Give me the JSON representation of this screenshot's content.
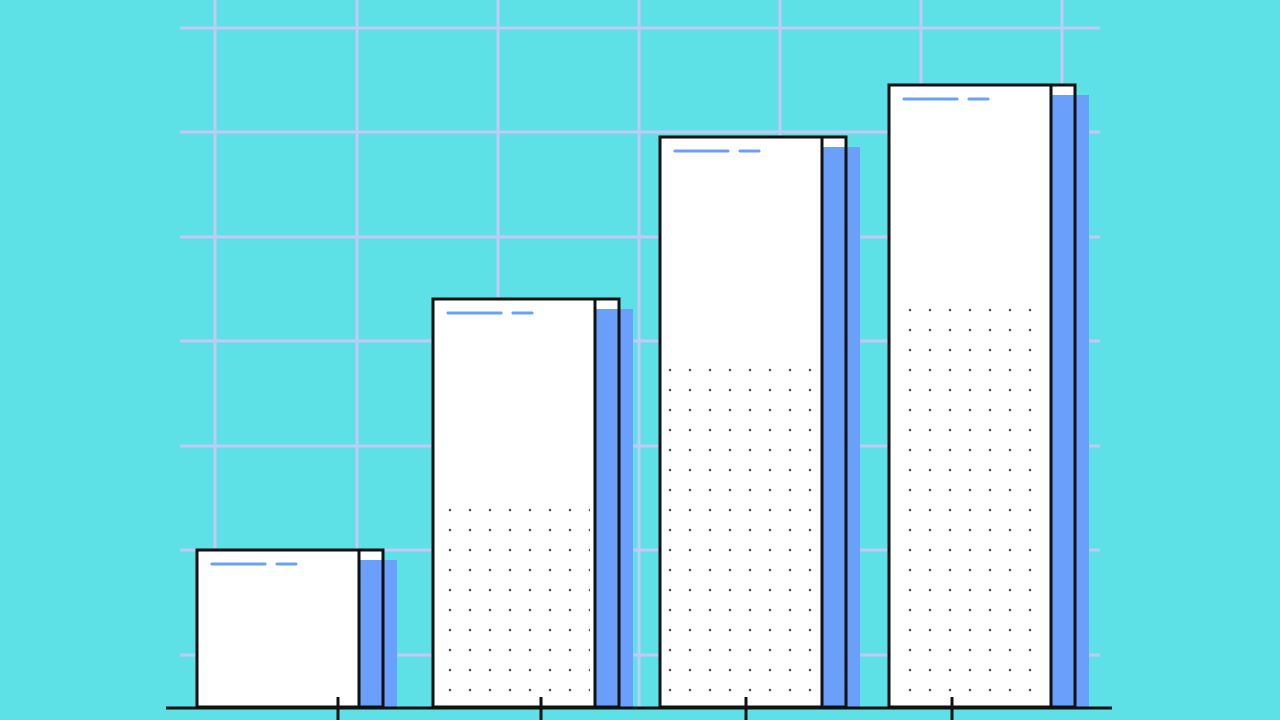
{
  "colors": {
    "background": "#5de0e6",
    "grid": "#c3c8f5",
    "bar_fill": "#ffffff",
    "bar_outline": "#111111",
    "accent": "#6aa0fb",
    "dots": "#555555"
  },
  "chart_data": {
    "type": "bar",
    "title": "",
    "xlabel": "",
    "ylabel": "",
    "categories": [
      "",
      "",
      "",
      ""
    ],
    "values": [
      1.5,
      3.9,
      5.45,
      5.95
    ],
    "dotted_fill": [
      0,
      1.9,
      3.4,
      3.95
    ],
    "ylim": [
      0,
      6.5
    ],
    "grid": true,
    "legend": "none",
    "style": "flat illustration, bars with blue side panel and dotted lower fill"
  }
}
